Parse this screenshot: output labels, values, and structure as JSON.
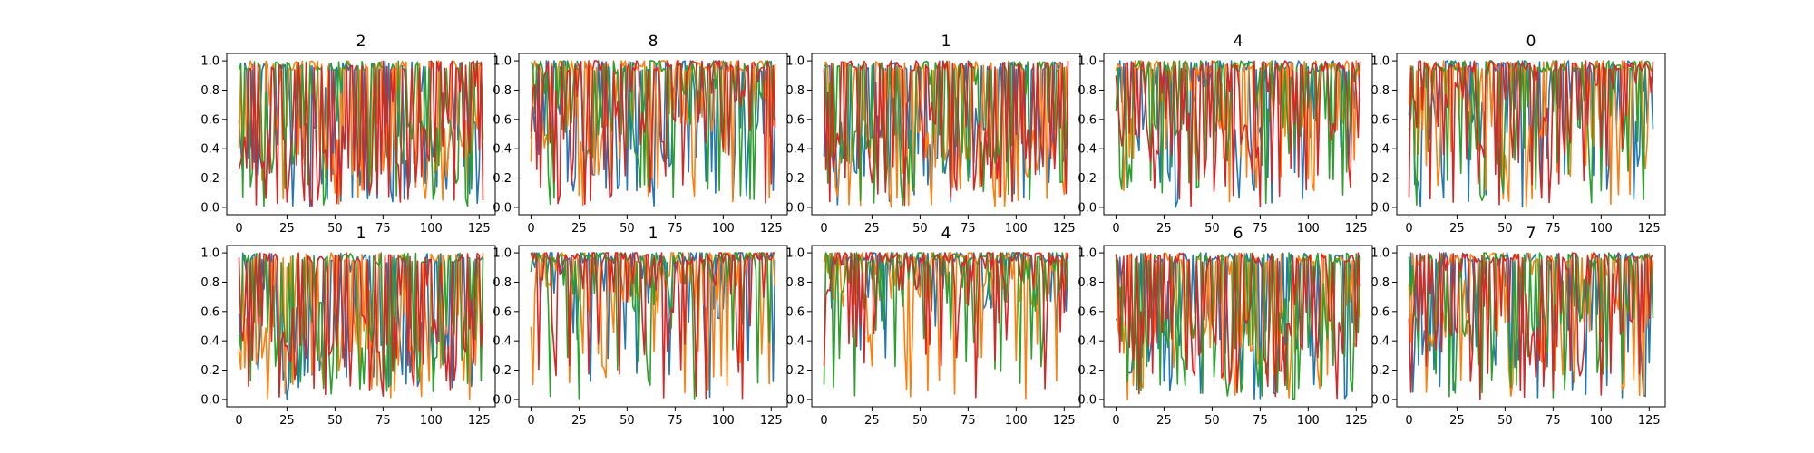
{
  "chart_data": {
    "type": "line",
    "layout": "2x5 grid of subplots",
    "series_colors": [
      "#1f77b4",
      "#ff7f0e",
      "#2ca02c",
      "#d62728"
    ],
    "x_ticks": [
      "0",
      "25",
      "50",
      "75",
      "100",
      "125"
    ],
    "y_ticks": [
      "0.0",
      "0.2",
      "0.4",
      "0.6",
      "0.8",
      "1.0"
    ],
    "xlim": [
      -6.35,
      133.35
    ],
    "ylim": [
      -0.05,
      1.05
    ],
    "points_per_series": 128,
    "panels": [
      {
        "title": "2",
        "style": [
          0.55,
          0.42
        ]
      },
      {
        "title": "8",
        "style": [
          0.82,
          0.25
        ]
      },
      {
        "title": "1",
        "style": [
          0.6,
          0.38
        ]
      },
      {
        "title": "4",
        "style": [
          0.78,
          0.26
        ]
      },
      {
        "title": "0",
        "style": [
          0.82,
          0.24
        ]
      },
      {
        "title": "1",
        "style": [
          0.62,
          0.4
        ]
      },
      {
        "title": "1",
        "style": [
          0.9,
          0.14
        ]
      },
      {
        "title": "4",
        "style": [
          0.9,
          0.13
        ]
      },
      {
        "title": "6",
        "style": [
          0.62,
          0.38
        ]
      },
      {
        "title": "7",
        "style": [
          0.72,
          0.3
        ]
      }
    ]
  }
}
